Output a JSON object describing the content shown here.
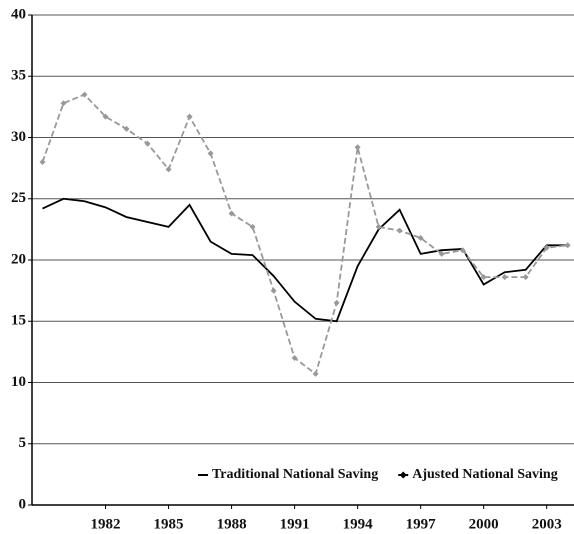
{
  "chart_data": {
    "type": "line",
    "x": [
      1979,
      1980,
      1981,
      1982,
      1983,
      1984,
      1985,
      1986,
      1987,
      1988,
      1989,
      1990,
      1991,
      1992,
      1993,
      1994,
      1995,
      1996,
      1997,
      1998,
      1999,
      2000,
      2001,
      2002,
      2003,
      2004
    ],
    "series": [
      {
        "name": "Traditional National Saving",
        "color": "#000000",
        "linestyle": "solid",
        "values": [
          24.2,
          25.0,
          24.8,
          24.3,
          23.5,
          23.1,
          22.7,
          24.5,
          21.5,
          20.5,
          20.4,
          18.7,
          16.6,
          15.2,
          15.0,
          19.5,
          22.5,
          24.1,
          20.5,
          20.8,
          20.9,
          18.0,
          19.0,
          19.2,
          21.2,
          21.2
        ]
      },
      {
        "name": "Ajusted National Saving",
        "color": "#999999",
        "linestyle": "dashed",
        "marker": "diamond",
        "values": [
          28.0,
          32.8,
          33.5,
          31.7,
          30.7,
          29.5,
          27.4,
          31.7,
          28.7,
          23.8,
          22.7,
          17.5,
          12.0,
          10.7,
          16.5,
          29.2,
          22.7,
          22.4,
          21.8,
          20.5,
          20.8,
          18.6,
          18.6,
          18.6,
          21.0,
          21.2
        ]
      }
    ],
    "xlim": [
      1978.5,
      2004.3
    ],
    "xticks": [
      1982,
      1985,
      1988,
      1991,
      1994,
      1997,
      2000,
      2003
    ],
    "ylim": [
      0,
      40
    ],
    "yticks": [
      0,
      5,
      10,
      15,
      20,
      25,
      30,
      35,
      40
    ],
    "grid": true,
    "legend_position": "lower right"
  }
}
